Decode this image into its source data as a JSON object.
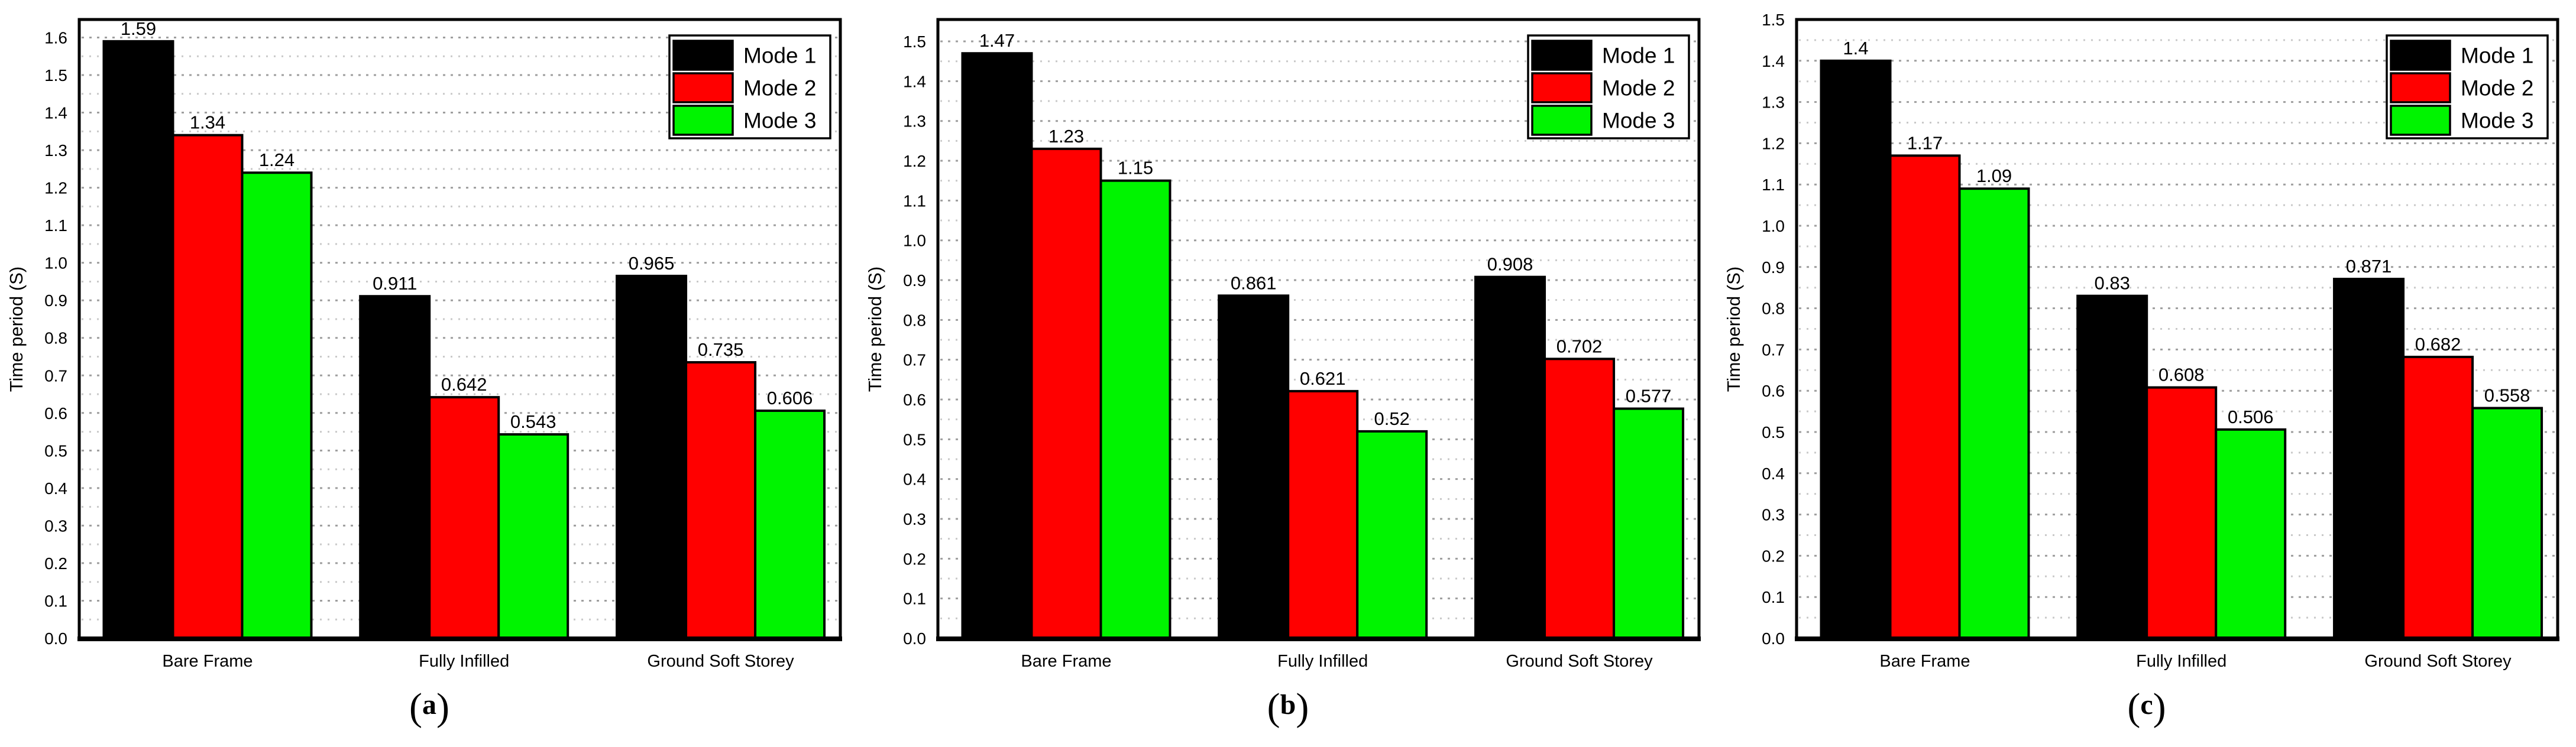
{
  "figure": {
    "ylabel": "Time period (S)",
    "categories": [
      "Bare Frame",
      "Fully Infilled",
      "Ground Soft Storey"
    ],
    "legend": [
      "Mode 1",
      "Mode 2",
      "Mode 3"
    ],
    "colors": {
      "mode1": "#000000",
      "mode2": "#ff0000",
      "mode3": "#00f400",
      "grid_major": "#9e9e9e",
      "grid_minor": "#c9c9c9",
      "frame": "#000000",
      "background": "#ffffff"
    }
  },
  "chart_data": [
    {
      "type": "bar",
      "panel_label": "(a)",
      "ylabel": "Time period (S)",
      "categories": [
        "Bare Frame",
        "Fully Infilled",
        "Ground Soft Storey"
      ],
      "series": [
        {
          "name": "Mode 1",
          "color": "#000000",
          "values": [
            1.59,
            0.911,
            0.965
          ],
          "labels": [
            "1.59",
            "0.911",
            "0.965"
          ]
        },
        {
          "name": "Mode 2",
          "color": "#ff0000",
          "values": [
            1.34,
            0.642,
            0.735
          ],
          "labels": [
            "1.34",
            "0.642",
            "0.735"
          ]
        },
        {
          "name": "Mode 3",
          "color": "#00f400",
          "values": [
            1.24,
            0.543,
            0.606
          ],
          "labels": [
            "1.24",
            "0.543",
            "0.606"
          ]
        }
      ],
      "ylim": [
        0,
        1.648
      ],
      "ytick_max": 1.6,
      "ytick_step": 0.1,
      "minor_step": 0.05,
      "grid": "dotted-horizontal",
      "legend_position": "top-right"
    },
    {
      "type": "bar",
      "panel_label": "(b)",
      "ylabel": "Time period (S)",
      "categories": [
        "Bare Frame",
        "Fully Infilled",
        "Ground Soft Storey"
      ],
      "series": [
        {
          "name": "Mode 1",
          "color": "#000000",
          "values": [
            1.47,
            0.861,
            0.908
          ],
          "labels": [
            "1.47",
            "0.861",
            "0.908"
          ]
        },
        {
          "name": "Mode 2",
          "color": "#ff0000",
          "values": [
            1.23,
            0.621,
            0.702
          ],
          "labels": [
            "1.23",
            "0.621",
            "0.702"
          ]
        },
        {
          "name": "Mode 3",
          "color": "#00f400",
          "values": [
            1.15,
            0.52,
            0.577
          ],
          "labels": [
            "1.15",
            "0.52",
            "0.577"
          ]
        }
      ],
      "ylim": [
        0,
        1.555
      ],
      "ytick_max": 1.5,
      "ytick_step": 0.1,
      "minor_step": 0.05,
      "grid": "dotted-horizontal",
      "legend_position": "top-right"
    },
    {
      "type": "bar",
      "panel_label": "(c)",
      "ylabel": "Time period (S)",
      "categories": [
        "Bare Frame",
        "Fully Infilled",
        "Ground Soft Storey"
      ],
      "series": [
        {
          "name": "Mode 1",
          "color": "#000000",
          "values": [
            1.4,
            0.83,
            0.871
          ],
          "labels": [
            "1.4",
            "0.83",
            "0.871"
          ]
        },
        {
          "name": "Mode 2",
          "color": "#ff0000",
          "values": [
            1.17,
            0.608,
            0.682
          ],
          "labels": [
            "1.17",
            "0.608",
            "0.682"
          ]
        },
        {
          "name": "Mode 3",
          "color": "#00f400",
          "values": [
            1.09,
            0.506,
            0.558
          ],
          "labels": [
            "1.09",
            "0.506",
            "0.558"
          ]
        }
      ],
      "ylim": [
        0,
        1.5
      ],
      "ytick_max": 1.5,
      "ytick_step": 0.1,
      "minor_step": 0.05,
      "grid": "dotted-horizontal",
      "legend_position": "top-right"
    }
  ]
}
